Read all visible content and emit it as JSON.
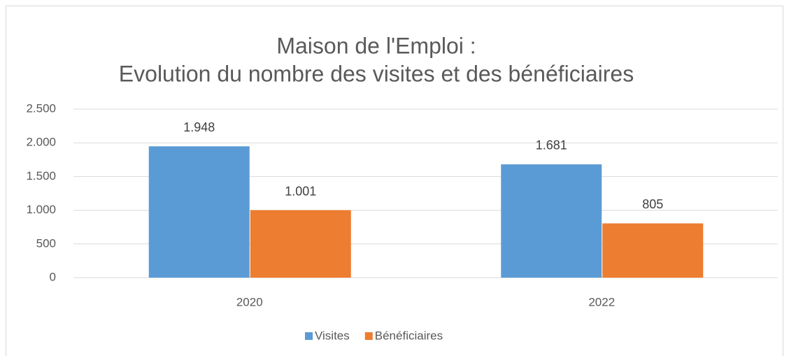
{
  "chart_data": {
    "type": "bar",
    "title": [
      "Maison de l'Emploi :",
      "Evolution du nombre des visites et des bénéficiaires"
    ],
    "categories": [
      "2020",
      "2022"
    ],
    "series": [
      {
        "name": "Visites",
        "color": "#5b9bd5",
        "values": [
          1948,
          1681
        ],
        "value_labels": [
          "1.948",
          "1.681"
        ]
      },
      {
        "name": "Bénéficiaires",
        "color": "#ed7d31",
        "values": [
          1001,
          805
        ],
        "value_labels": [
          "1.001",
          "805"
        ]
      }
    ],
    "ylim": [
      0,
      2500
    ],
    "yticks": [
      0,
      500,
      {
        "value": 1000,
        "label": "1.000"
      },
      {
        "value": 1500,
        "label": "1.500"
      },
      {
        "value": 2000,
        "label": "2.000"
      },
      {
        "value": 2500,
        "label": "2.500"
      }
    ],
    "grid": true,
    "legend": "bottom"
  }
}
